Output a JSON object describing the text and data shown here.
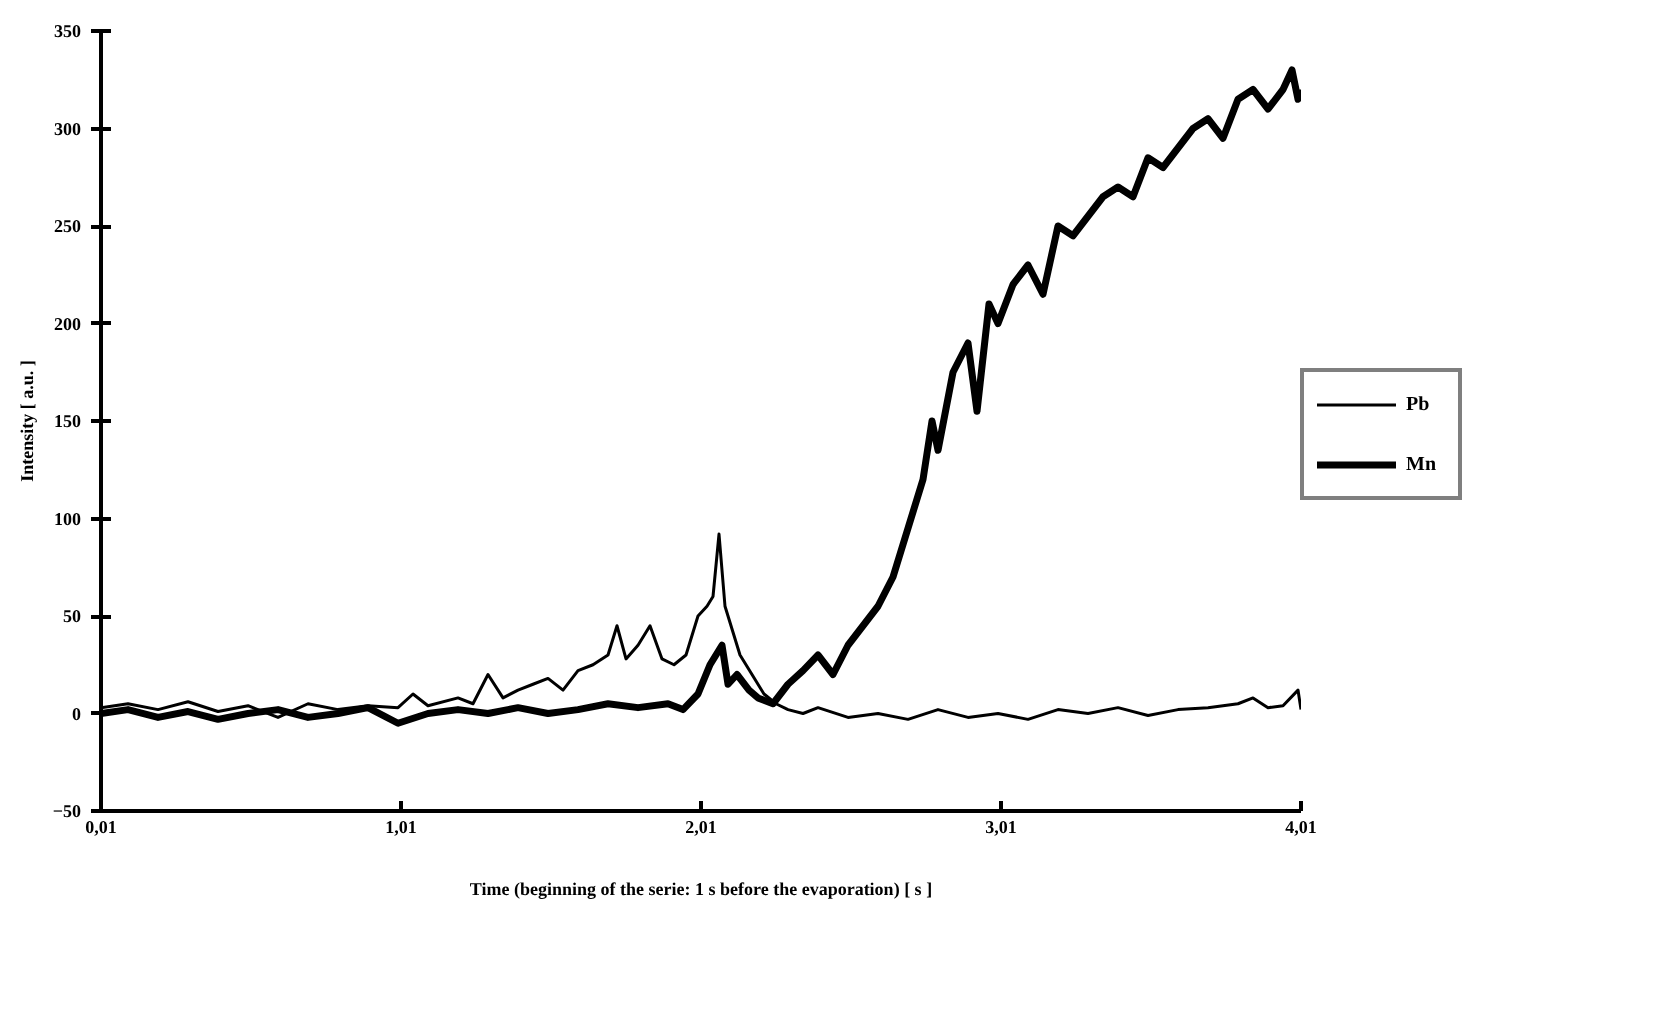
{
  "chart_data": {
    "type": "line",
    "xlabel": "Time (beginning of the serie: 1 s before the evaporation) [ s ]",
    "ylabel": "Intensity [ a.u. ]",
    "xlim": [
      0.01,
      4.01
    ],
    "ylim": [
      -50,
      350
    ],
    "xticks": [
      {
        "value": 0.01,
        "label": "0,01"
      },
      {
        "value": 1.01,
        "label": "1,01"
      },
      {
        "value": 2.01,
        "label": "2,01"
      },
      {
        "value": 3.01,
        "label": "3,01"
      },
      {
        "value": 4.01,
        "label": "4,01"
      }
    ],
    "yticks": [
      -50,
      0,
      50,
      100,
      150,
      200,
      250,
      300,
      350
    ],
    "grid": false,
    "legend": "right",
    "marker": "none",
    "line_style": "solid",
    "series": [
      {
        "name": "Pb",
        "color": "#000000",
        "x": [
          0.01,
          0.1,
          0.2,
          0.3,
          0.4,
          0.5,
          0.6,
          0.7,
          0.8,
          0.9,
          1.0,
          1.05,
          1.1,
          1.2,
          1.25,
          1.3,
          1.35,
          1.4,
          1.45,
          1.5,
          1.55,
          1.6,
          1.65,
          1.7,
          1.73,
          1.76,
          1.8,
          1.84,
          1.88,
          1.92,
          1.96,
          2.0,
          2.03,
          2.05,
          2.07,
          2.09,
          2.11,
          2.14,
          2.18,
          2.22,
          2.26,
          2.3,
          2.35,
          2.4,
          2.5,
          2.6,
          2.7,
          2.8,
          2.9,
          3.0,
          3.1,
          3.2,
          3.3,
          3.4,
          3.5,
          3.6,
          3.7,
          3.8,
          3.85,
          3.9,
          3.95,
          4.0,
          4.01
        ],
        "values": [
          3,
          5,
          2,
          6,
          1,
          4,
          -2,
          5,
          2,
          4,
          3,
          10,
          4,
          8,
          5,
          20,
          8,
          12,
          15,
          18,
          12,
          22,
          25,
          30,
          45,
          28,
          35,
          45,
          28,
          25,
          30,
          50,
          55,
          60,
          92,
          55,
          45,
          30,
          20,
          10,
          5,
          2,
          0,
          3,
          -2,
          0,
          -3,
          2,
          -2,
          0,
          -3,
          2,
          0,
          3,
          -1,
          2,
          3,
          5,
          8,
          3,
          4,
          12,
          2
        ]
      },
      {
        "name": "Mn",
        "color": "#000000",
        "x": [
          0.01,
          0.1,
          0.2,
          0.3,
          0.4,
          0.5,
          0.6,
          0.7,
          0.8,
          0.9,
          1.0,
          1.1,
          1.2,
          1.3,
          1.4,
          1.5,
          1.6,
          1.7,
          1.8,
          1.9,
          1.95,
          2.0,
          2.04,
          2.08,
          2.1,
          2.13,
          2.17,
          2.2,
          2.25,
          2.3,
          2.35,
          2.4,
          2.45,
          2.5,
          2.55,
          2.6,
          2.65,
          2.7,
          2.75,
          2.78,
          2.8,
          2.85,
          2.9,
          2.93,
          2.97,
          3.0,
          3.05,
          3.1,
          3.15,
          3.2,
          3.25,
          3.3,
          3.35,
          3.4,
          3.45,
          3.5,
          3.55,
          3.6,
          3.65,
          3.7,
          3.75,
          3.8,
          3.85,
          3.9,
          3.95,
          3.98,
          4.0,
          4.01
        ],
        "values": [
          0,
          2,
          -2,
          1,
          -3,
          0,
          2,
          -2,
          0,
          3,
          -5,
          0,
          2,
          0,
          3,
          0,
          2,
          5,
          3,
          5,
          2,
          10,
          25,
          35,
          15,
          20,
          12,
          8,
          5,
          15,
          22,
          30,
          20,
          35,
          45,
          55,
          70,
          95,
          120,
          150,
          135,
          175,
          190,
          155,
          210,
          200,
          220,
          230,
          215,
          250,
          245,
          255,
          265,
          270,
          265,
          285,
          280,
          290,
          300,
          305,
          295,
          315,
          320,
          310,
          320,
          330,
          315,
          320
        ]
      }
    ]
  }
}
